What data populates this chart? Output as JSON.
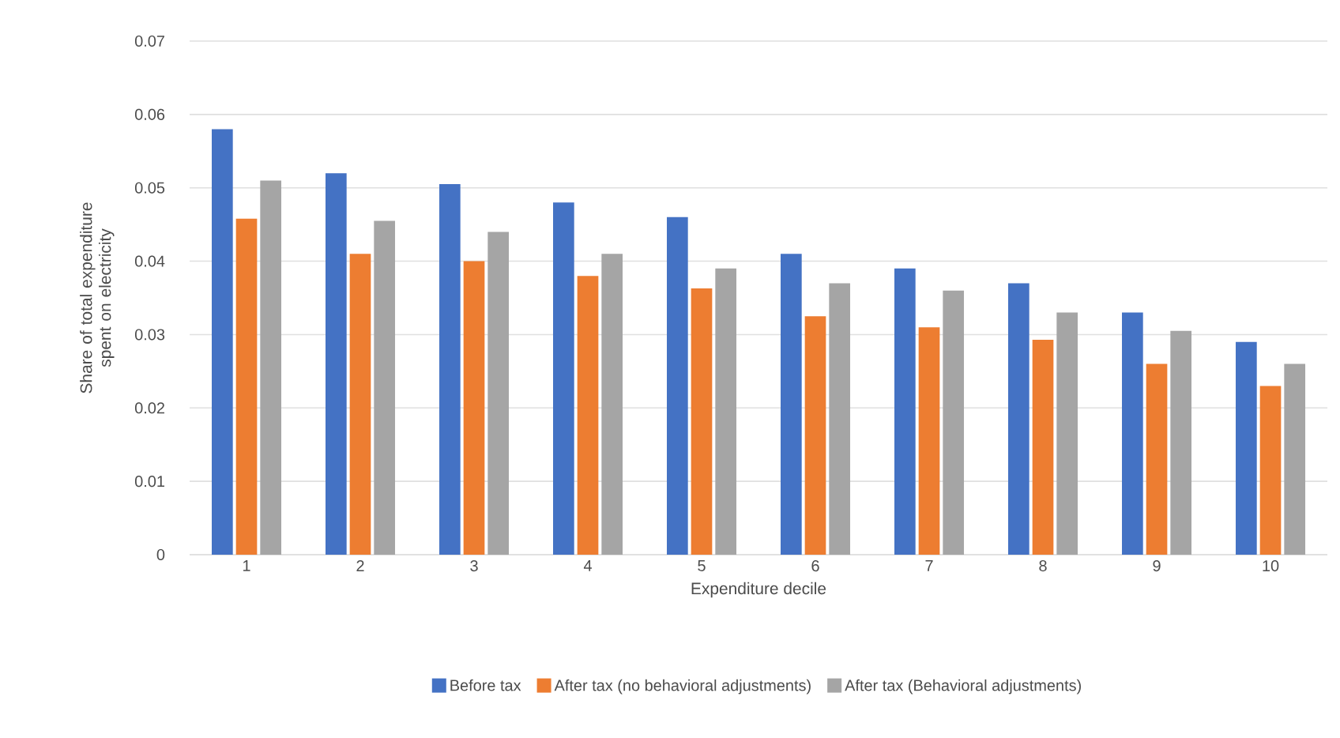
{
  "chart_data": {
    "type": "bar",
    "xlabel": "Expenditure decile",
    "ylabel": "Share of total expenditure spent on electricity",
    "categories": [
      "1",
      "2",
      "3",
      "4",
      "5",
      "6",
      "7",
      "8",
      "9",
      "10"
    ],
    "series": [
      {
        "name": "Before tax",
        "color": "#4472c4",
        "values": [
          0.058,
          0.052,
          0.0505,
          0.048,
          0.046,
          0.041,
          0.039,
          0.037,
          0.033,
          0.029
        ]
      },
      {
        "name": "After tax (no behavioral adjustments)",
        "color": "#ed7d31",
        "values": [
          0.0458,
          0.041,
          0.04,
          0.038,
          0.0363,
          0.0325,
          0.031,
          0.0293,
          0.026,
          0.023
        ]
      },
      {
        "name": "After tax (Behavioral adjustments)",
        "color": "#a5a5a5",
        "values": [
          0.051,
          0.0455,
          0.044,
          0.041,
          0.039,
          0.037,
          0.036,
          0.033,
          0.0305,
          0.026
        ]
      }
    ],
    "ylim": [
      0,
      0.07
    ],
    "yticks": [
      0,
      0.01,
      0.02,
      0.03,
      0.04,
      0.05,
      0.06,
      0.07
    ],
    "grid": "y",
    "legend": "bottom"
  }
}
